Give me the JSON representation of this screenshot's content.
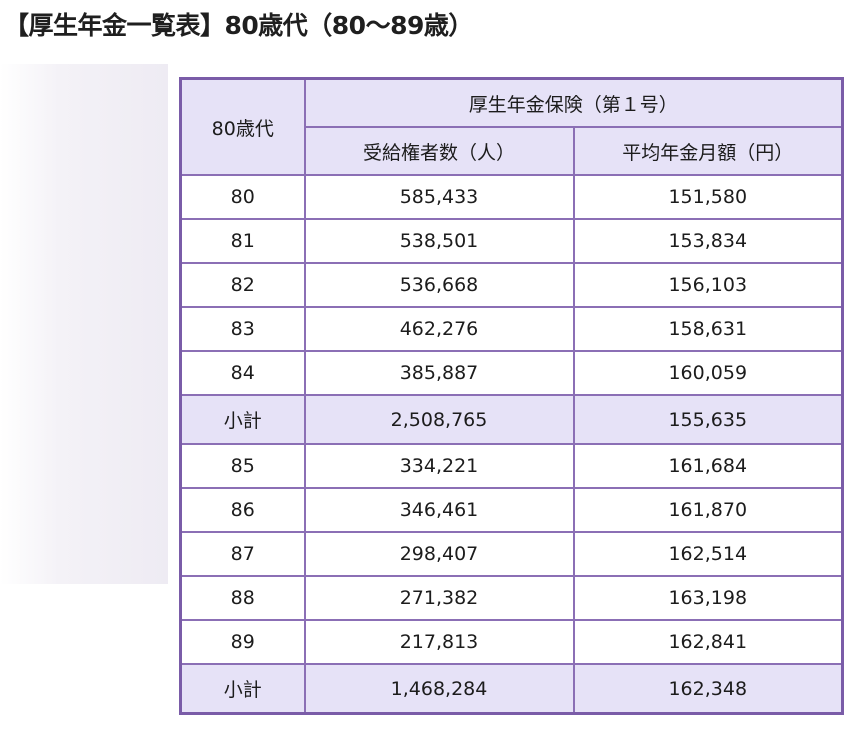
{
  "heading": "【厚生年金一覧表】80歳代（80〜89歳）",
  "table": {
    "age_header": "80歳代",
    "group_header": "厚生年金保険（第１号）",
    "col_recipients": "受給権者数（人）",
    "col_average": "平均年金月額（円）",
    "rows": [
      {
        "age": "80",
        "recipients": "585,433",
        "average": "151,580"
      },
      {
        "age": "81",
        "recipients": "538,501",
        "average": "153,834"
      },
      {
        "age": "82",
        "recipients": "536,668",
        "average": "156,103"
      },
      {
        "age": "83",
        "recipients": "462,276",
        "average": "158,631"
      },
      {
        "age": "84",
        "recipients": "385,887",
        "average": "160,059"
      },
      {
        "age": "小計",
        "recipients": "2,508,765",
        "average": "155,635"
      },
      {
        "age": "85",
        "recipients": "334,221",
        "average": "161,684"
      },
      {
        "age": "86",
        "recipients": "346,461",
        "average": "161,870"
      },
      {
        "age": "87",
        "recipients": "298,407",
        "average": "162,514"
      },
      {
        "age": "88",
        "recipients": "271,382",
        "average": "163,198"
      },
      {
        "age": "89",
        "recipients": "217,813",
        "average": "162,841"
      },
      {
        "age": "小計",
        "recipients": "1,468,284",
        "average": "162,348"
      }
    ]
  },
  "colors": {
    "border": "#8b6fb5",
    "header_fill": "#e6e2f7"
  }
}
